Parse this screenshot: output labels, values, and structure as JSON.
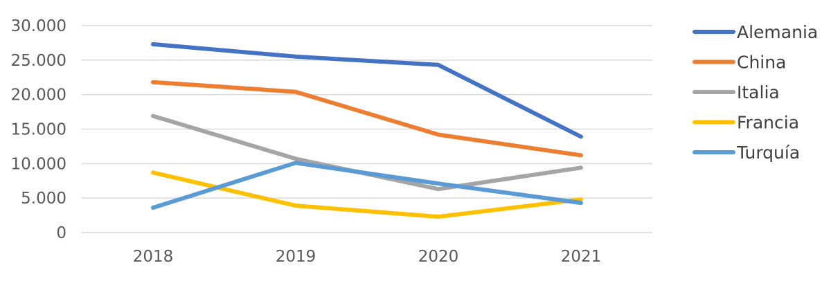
{
  "chart_data": {
    "type": "line",
    "title": "",
    "xlabel": "",
    "ylabel": "",
    "categories": [
      "2018",
      "2019",
      "2020",
      "2021"
    ],
    "ylim": [
      0,
      30000
    ],
    "yticks": [
      0,
      5000,
      10000,
      15000,
      20000,
      25000,
      30000
    ],
    "ytick_labels": [
      "0",
      "5.000",
      "10.000",
      "15.000",
      "20.000",
      "25.000",
      "30.000"
    ],
    "grid": true,
    "legend_position": "right",
    "series": [
      {
        "name": "Alemania",
        "color": "#4472c4",
        "values": [
          27300,
          25500,
          24300,
          13900
        ]
      },
      {
        "name": "China",
        "color": "#ed7d31",
        "values": [
          21800,
          20400,
          14200,
          11200
        ]
      },
      {
        "name": "Italia",
        "color": "#a5a5a5",
        "values": [
          16900,
          10700,
          6300,
          9400
        ]
      },
      {
        "name": "Francia",
        "color": "#ffc000",
        "values": [
          8700,
          3900,
          2300,
          4800
        ]
      },
      {
        "name": "Turquía",
        "color": "#5b9bd5",
        "values": [
          3600,
          10100,
          7100,
          4300
        ]
      }
    ]
  }
}
